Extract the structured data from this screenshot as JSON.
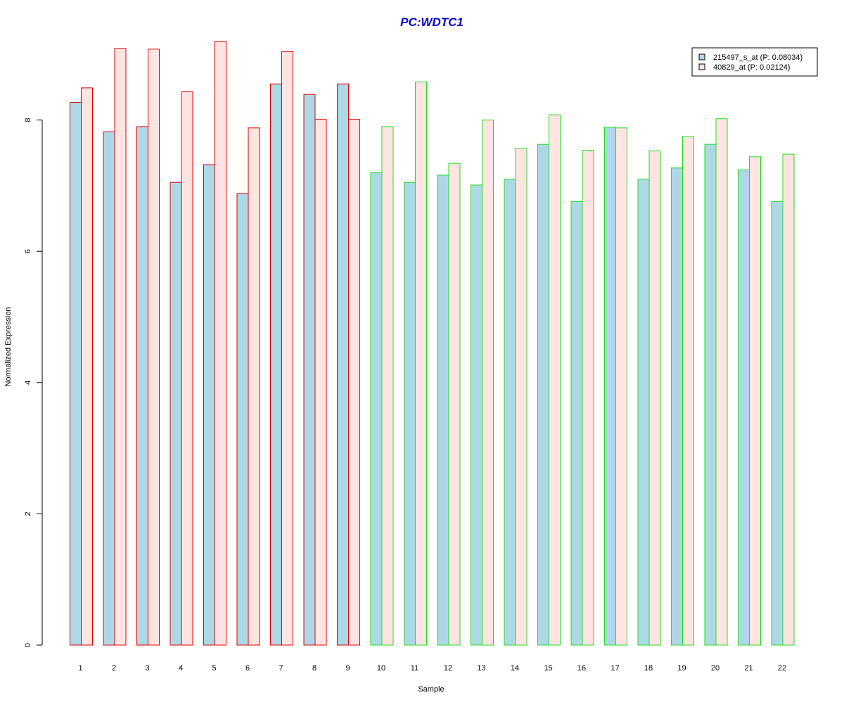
{
  "chart_data": {
    "type": "bar",
    "title": "PC:WDTC1",
    "xlabel": "Sample",
    "ylabel": "Normalized Expression",
    "categories": [
      "1",
      "2",
      "3",
      "4",
      "5",
      "6",
      "7",
      "8",
      "9",
      "10",
      "11",
      "12",
      "13",
      "14",
      "15",
      "16",
      "17",
      "18",
      "19",
      "20",
      "21",
      "22"
    ],
    "series": [
      {
        "name": "215497_s_at (P: 0.08034)",
        "fill": "#add8e6",
        "values": [
          8.27,
          7.82,
          7.9,
          7.05,
          7.32,
          6.88,
          8.55,
          8.39,
          8.55,
          7.2,
          7.05,
          7.16,
          7.01,
          7.1,
          7.63,
          6.76,
          7.89,
          7.1,
          7.27,
          7.63,
          7.24,
          6.76
        ]
      },
      {
        "name": "40829_at (P: 0.02124)",
        "fill": "#ffe4e1",
        "values": [
          8.49,
          9.09,
          9.08,
          8.43,
          9.2,
          7.88,
          9.04,
          8.01,
          8.01,
          7.9,
          8.58,
          7.34,
          8.0,
          7.57,
          8.08,
          7.54,
          7.88,
          7.53,
          7.75,
          8.02,
          7.44,
          7.48
        ]
      }
    ],
    "group_border_colors": [
      "#e00000",
      "#e00000",
      "#e00000",
      "#e00000",
      "#e00000",
      "#e00000",
      "#e00000",
      "#e00000",
      "#e00000",
      "#22dd22",
      "#22dd22",
      "#22dd22",
      "#22dd22",
      "#22dd22",
      "#22dd22",
      "#22dd22",
      "#22dd22",
      "#22dd22",
      "#22dd22",
      "#22dd22",
      "#22dd22",
      "#22dd22"
    ],
    "y_ticks": [
      "0",
      "2",
      "4",
      "6",
      "8"
    ],
    "ylim": [
      0,
      9.2
    ],
    "title_color": "#0000cc",
    "legend_position": "top-right",
    "grid": false
  }
}
